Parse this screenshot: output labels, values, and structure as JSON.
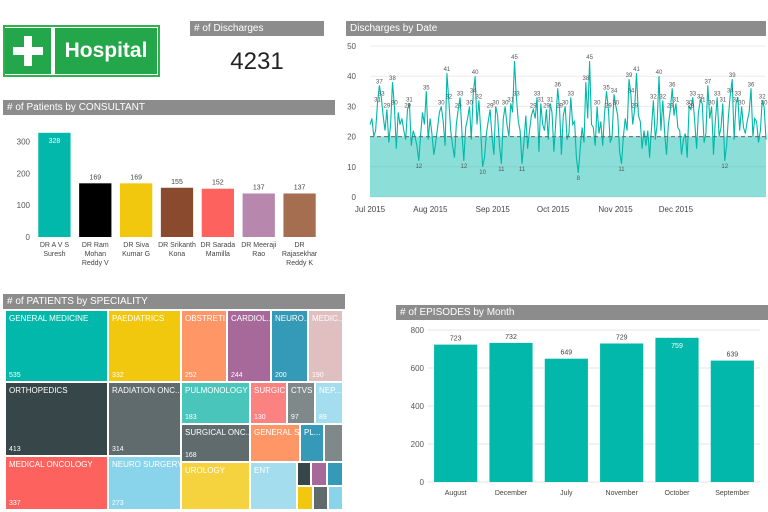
{
  "logo": {
    "text": "Hospital",
    "icon": "plus-cross-icon",
    "color": "#24a64a"
  },
  "kpi": {
    "title": "# of Discharges",
    "value": "4231"
  },
  "consultant_title": "# of Patients by CONSULTANT",
  "date_title": "Discharges by Date",
  "speciality_title": "# of PATIENTS by SPECIALITY",
  "month_title": "# of EPISODES by Month",
  "chart_data": [
    {
      "type": "bar",
      "id": "consultant",
      "categories": [
        [
          "DR A V S",
          "Suresh"
        ],
        [
          "DR Ram",
          "Mohan",
          "Reddy V"
        ],
        [
          "DR Siva",
          "Kumar G"
        ],
        [
          "DR Srikanth",
          "Kona"
        ],
        [
          "DR Sarada",
          "Mamilla"
        ],
        [
          "DR Meeraji",
          "Rao"
        ],
        [
          "DR",
          "Rajasekhar",
          "Reddy K"
        ]
      ],
      "values": [
        328,
        169,
        169,
        155,
        152,
        137,
        137
      ],
      "colors": [
        "#01b8aa",
        "#000000",
        "#f2c80f",
        "#8a4a2d",
        "#fd625e",
        "#b887ad",
        "#a66e50"
      ],
      "yticks": [
        0,
        100,
        200,
        300
      ],
      "ylim": [
        0,
        340
      ]
    },
    {
      "type": "area",
      "id": "discharges_by_date",
      "yticks": [
        0,
        10,
        20,
        30,
        40,
        50
      ],
      "ylim": [
        0,
        50
      ],
      "xticks": [
        "Jul 2015",
        "Aug 2015",
        "Sep 2015",
        "Oct 2015",
        "Nov 2015",
        "Dec 2015"
      ],
      "average": 20,
      "y": [
        24,
        26,
        20,
        22,
        31,
        37,
        33,
        27,
        22,
        29,
        18,
        24,
        38,
        30,
        16,
        28,
        24,
        26,
        22,
        19,
        29,
        31,
        17,
        22,
        20,
        17,
        12,
        21,
        28,
        24,
        35,
        19,
        26,
        21,
        14,
        18,
        23,
        28,
        30,
        25,
        17,
        41,
        32,
        22,
        17,
        13,
        24,
        29,
        33,
        21,
        12,
        23,
        26,
        30,
        19,
        34,
        40,
        24,
        32,
        22,
        10,
        13,
        21,
        25,
        29,
        20,
        14,
        30,
        27,
        17,
        11,
        26,
        30,
        24,
        20,
        31,
        28,
        45,
        33,
        25,
        22,
        11,
        18,
        27,
        16,
        22,
        27,
        29,
        26,
        33,
        15,
        31,
        24,
        22,
        29,
        19,
        31,
        28,
        15,
        25,
        36,
        29,
        14,
        27,
        30,
        19,
        21,
        33,
        24,
        25,
        13,
        8,
        16,
        23,
        18,
        38,
        26,
        45,
        24,
        23,
        17,
        30,
        21,
        25,
        17,
        28,
        35,
        29,
        18,
        20,
        34,
        30,
        27,
        15,
        11,
        20,
        26,
        22,
        39,
        34,
        24,
        29,
        41,
        27,
        25,
        16,
        22,
        17,
        22,
        13,
        23,
        32,
        19,
        24,
        40,
        22,
        32,
        21,
        14,
        24,
        29,
        36,
        27,
        31,
        23,
        22,
        14,
        19,
        21,
        13,
        30,
        29,
        33,
        25,
        16,
        28,
        32,
        31,
        18,
        21,
        37,
        26,
        30,
        14,
        25,
        33,
        20,
        23,
        31,
        12,
        17,
        27,
        34,
        39,
        19,
        31,
        33,
        22,
        30,
        23,
        21,
        25,
        28,
        36,
        20,
        26,
        25,
        18,
        22,
        32,
        30,
        19
      ]
    },
    {
      "type": "treemap",
      "id": "speciality",
      "items": [
        {
          "name": "GENERAL MEDICINE",
          "value": "535",
          "color": "#01b8aa"
        },
        {
          "name": "PAEDIATRICS",
          "value": "332",
          "color": "#f2c80f"
        },
        {
          "name": "OBSTRETI...",
          "value": "252",
          "color": "#fe9666"
        },
        {
          "name": "CARDIOL...",
          "value": "244",
          "color": "#a66999"
        },
        {
          "name": "NEURO...",
          "value": "200",
          "color": "#3599b8"
        },
        {
          "name": "MEDIC...",
          "value": "190",
          "color": "#dfbfbf"
        },
        {
          "name": "ORTHOPEDICS",
          "value": "413",
          "color": "#374649"
        },
        {
          "name": "RADIATION ONC...",
          "value": "314",
          "color": "#5f6b6d"
        },
        {
          "name": "PULMONOLOGY",
          "value": "183",
          "color": "#4ac5bb"
        },
        {
          "name": "SURGIC...",
          "value": "130",
          "color": "#fb8281"
        },
        {
          "name": "CTVS",
          "value": "97",
          "color": "#7f898a"
        },
        {
          "name": "NEP...",
          "value": "89",
          "color": "#a4ddee"
        },
        {
          "name": "MEDICAL ONCOLOGY",
          "value": "337",
          "color": "#fd625e"
        },
        {
          "name": "NEURO SURGERY",
          "value": "273",
          "color": "#8ad4eb"
        },
        {
          "name": "SURGICAL ONC...",
          "value": "168",
          "color": "#5f6b6d"
        },
        {
          "name": "GENERAL S...",
          "value": "",
          "color": "#fe9666"
        },
        {
          "name": "PL...",
          "value": "",
          "color": "#3599b8"
        },
        {
          "name": "UROLOGY",
          "value": "",
          "color": "#f5d33f"
        },
        {
          "name": "ENT",
          "value": "",
          "color": "#a4ddee"
        }
      ]
    },
    {
      "type": "bar",
      "id": "episodes_by_month",
      "categories": [
        "August",
        "December",
        "July",
        "November",
        "October",
        "September"
      ],
      "values": [
        723,
        732,
        649,
        729,
        759,
        639
      ],
      "colors": [
        "#01b8aa",
        "#01b8aa",
        "#01b8aa",
        "#01b8aa",
        "#01b8aa",
        "#01b8aa"
      ],
      "yticks": [
        0,
        200,
        400,
        600,
        800
      ],
      "ylim": [
        0,
        800
      ]
    }
  ]
}
